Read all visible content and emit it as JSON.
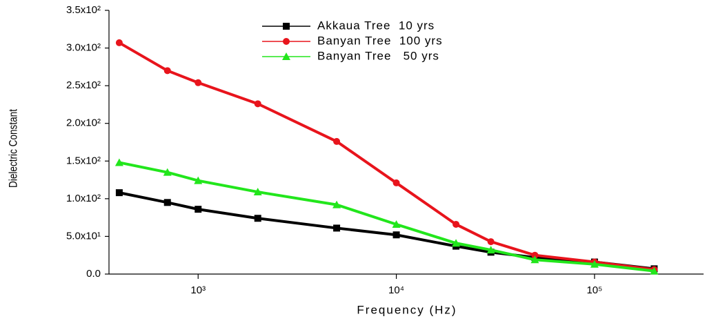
{
  "chart_data": {
    "type": "line",
    "x_label": "Frequency (Hz)",
    "y_label": "Dielectric Constant",
    "x": [
      400,
      700,
      1000,
      2000,
      5000,
      10000,
      20000,
      30000,
      50000,
      100000,
      200000
    ],
    "x_log": true,
    "xlim": [
      355,
      355000
    ],
    "xticks": [
      {
        "value": 1000,
        "label": "10³"
      },
      {
        "value": 10000,
        "label": "10⁴"
      },
      {
        "value": 100000,
        "label": "10⁵"
      }
    ],
    "ylim": [
      0,
      350
    ],
    "yticks": [
      {
        "value": 0,
        "label": "0.0"
      },
      {
        "value": 50,
        "label": "5.0x10¹"
      },
      {
        "value": 100,
        "label": "1.0x10²"
      },
      {
        "value": 150,
        "label": "1.5x10²"
      },
      {
        "value": 200,
        "label": "2.0x10²"
      },
      {
        "value": 250,
        "label": "2.5x10²"
      },
      {
        "value": 300,
        "label": "3.0x10²"
      },
      {
        "value": 350,
        "label": "3.5x10²"
      }
    ],
    "legend": "upper center",
    "series": [
      {
        "name": "Akkaua Tree  10 yrs",
        "color": "#000000",
        "marker": "square",
        "values": [
          108,
          95,
          86,
          74,
          61,
          52,
          37,
          29,
          22,
          16,
          7
        ]
      },
      {
        "name": "Banyan Tree  100 yrs",
        "color": "#e8141c",
        "marker": "circle",
        "values": [
          307,
          270,
          254,
          226,
          176,
          121,
          66,
          43,
          25,
          16,
          6
        ]
      },
      {
        "name": "Banyan Tree   50 yrs",
        "color": "#22e61c",
        "marker": "triangle",
        "values": [
          148,
          135,
          124,
          109,
          92,
          66,
          41,
          32,
          19,
          13,
          4
        ]
      }
    ]
  }
}
